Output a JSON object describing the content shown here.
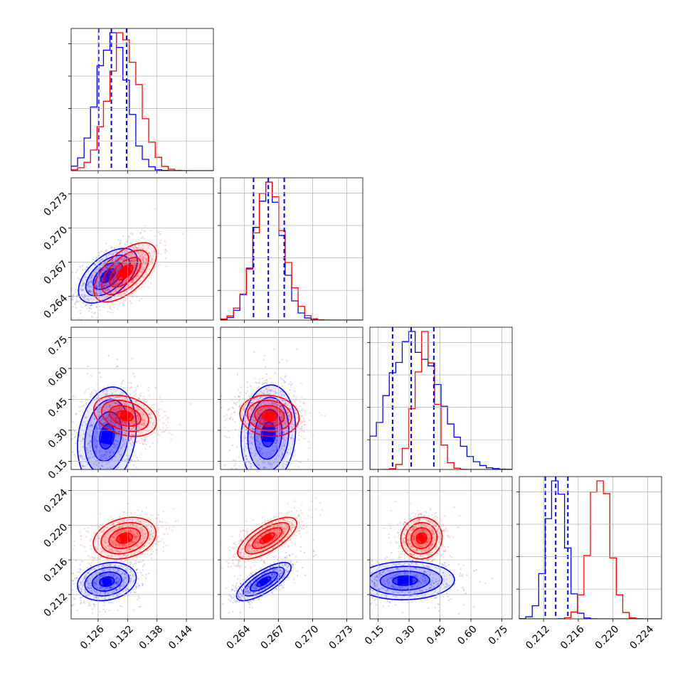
{
  "chart_data": {
    "type": "corner",
    "series_colors": {
      "blue": "#0000ff",
      "red": "#ff0000"
    },
    "grid": true,
    "parameters": [
      {
        "range": [
          0.1205,
          0.1495
        ],
        "ticks": [
          "0.126",
          "0.132",
          "0.138",
          "0.144"
        ]
      },
      {
        "range": [
          0.2619,
          0.2744
        ],
        "ticks": [
          "0.264",
          "0.267",
          "0.270",
          "0.273"
        ]
      },
      {
        "range": [
          0.11,
          0.8
        ],
        "ticks": [
          "0.15",
          "0.30",
          "0.45",
          "0.60",
          "0.75"
        ]
      },
      {
        "range": [
          0.2092,
          0.2256
        ],
        "ticks": [
          "0.212",
          "0.216",
          "0.220",
          "0.224"
        ]
      }
    ],
    "histograms": [
      {
        "blue": {
          "mean": 0.1289,
          "sd": 0.003,
          "quantiles": [
            0.1261,
            0.1287,
            0.1318
          ]
        },
        "red": {
          "mean": 0.1313,
          "sd": 0.0032
        }
      },
      {
        "blue": {
          "mean": 0.2661,
          "sd": 0.0012,
          "quantiles": [
            0.2648,
            0.2661,
            0.2675
          ]
        },
        "red": {
          "mean": 0.2662,
          "sd": 0.0013
        }
      },
      {
        "blue": {
          "mean": 0.32,
          "sd": 0.12,
          "quantiles": [
            0.22,
            0.31,
            0.42
          ]
        },
        "red": {
          "mean": 0.38,
          "sd": 0.05
        }
      },
      {
        "blue": {
          "mean": 0.2135,
          "sd": 0.0011,
          "quantiles": [
            0.2122,
            0.2134,
            0.2148
          ]
        },
        "red": {
          "mean": 0.2185,
          "sd": 0.0012
        }
      }
    ],
    "pairs": [
      {
        "row": 1,
        "col": 0,
        "blue": {
          "cx": 0.128,
          "cy": 0.2658,
          "rho": 0.55
        },
        "red": {
          "cx": 0.1315,
          "cy": 0.2661,
          "rho": 0.6
        }
      },
      {
        "row": 2,
        "col": 0,
        "blue": {
          "cx": 0.1278,
          "cy": 0.27,
          "rho": 0.2
        },
        "red": {
          "cx": 0.1315,
          "cy": 0.37,
          "rho": -0.3
        }
      },
      {
        "row": 2,
        "col": 1,
        "blue": {
          "cx": 0.2661,
          "cy": 0.28,
          "rho": 0.1
        },
        "red": {
          "cx": 0.2662,
          "cy": 0.37,
          "rho": -0.1
        }
      },
      {
        "row": 3,
        "col": 0,
        "blue": {
          "cx": 0.1278,
          "cy": 0.2135,
          "rho": 0.2
        },
        "red": {
          "cx": 0.1314,
          "cy": 0.2185,
          "rho": 0.25
        }
      },
      {
        "row": 3,
        "col": 1,
        "blue": {
          "cx": 0.2657,
          "cy": 0.2135,
          "rho": 0.75
        },
        "red": {
          "cx": 0.266,
          "cy": 0.2185,
          "rho": 0.7
        }
      },
      {
        "row": 3,
        "col": 2,
        "blue": {
          "cx": 0.28,
          "cy": 0.2136,
          "rho": 0.05
        },
        "red": {
          "cx": 0.36,
          "cy": 0.2185,
          "rho": 0.05
        }
      }
    ]
  }
}
